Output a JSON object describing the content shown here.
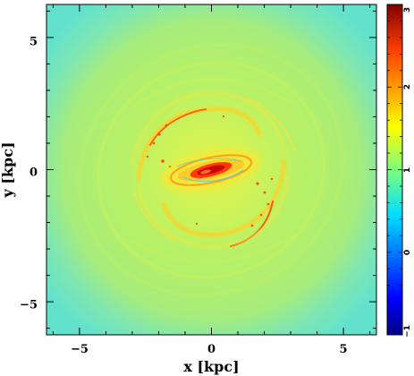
{
  "chart_data": {
    "type": "heatmap",
    "title": "",
    "xlabel": "x [kpc]",
    "ylabel": "y [kpc]",
    "xlim": [
      -6.25,
      6.25
    ],
    "ylim": [
      -6.25,
      6.25
    ],
    "x_ticks": [
      -5,
      0,
      5
    ],
    "y_ticks": [
      -5,
      0,
      5
    ],
    "x_tick_labels": [
      "−5",
      "0",
      "5"
    ],
    "y_tick_labels": [
      "−5",
      "0",
      "5"
    ],
    "colorbar": {
      "range": [
        -1,
        3
      ],
      "ticks": [
        -1,
        0,
        1,
        2,
        3
      ],
      "tick_labels": [
        "−1",
        "0",
        "1",
        "2",
        "3"
      ],
      "colormap": "jet"
    },
    "features": {
      "background_level": 1.2,
      "outer_halo_level": 0.7,
      "spiral_arm_level": 2.0,
      "nucleus_peak_level": 3.0,
      "spiral_arm_radius_kpc": 3.3,
      "nucleus_size_kpc": [
        1.4,
        0.5
      ]
    }
  }
}
